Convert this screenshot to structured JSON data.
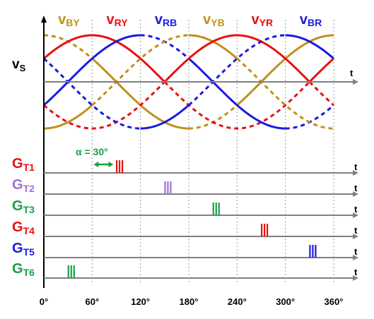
{
  "chart_data": {
    "type": "line",
    "title": "",
    "ylabel": {
      "main": "v",
      "sub": "S"
    },
    "xlabel": "t",
    "x_unit": "degrees",
    "xlim": [
      0,
      360
    ],
    "ylim": [
      -1,
      1
    ],
    "x_ticks": [
      0,
      60,
      120,
      180,
      240,
      300,
      360
    ],
    "x_tick_labels": [
      "0°",
      "60°",
      "120°",
      "180°",
      "240°",
      "300°",
      "360°"
    ],
    "grid": "vertical dotted lines every 60°",
    "series": [
      {
        "name_main": "v",
        "name_sub": "BY",
        "color": "#C09018",
        "expression": "sin(x + 90°)",
        "label_at_deg": 30,
        "segments": [
          {
            "from": 0,
            "to": 60,
            "style": "dashed"
          },
          {
            "from": 60,
            "to": 180,
            "style": "solid"
          },
          {
            "from": 180,
            "to": 240,
            "style": "dashed"
          },
          {
            "from": 240,
            "to": 360,
            "style": "solid"
          }
        ]
      },
      {
        "name_main": "v",
        "name_sub": "RY",
        "color": "#E81010",
        "expression": "sin(x + 30°)",
        "label_at_deg": 90,
        "segments": [
          {
            "from": 0,
            "to": 150,
            "style": "solid"
          },
          {
            "from": 150,
            "to": 330,
            "style": "dashed"
          },
          {
            "from": 330,
            "to": 360,
            "style": "solid"
          }
        ]
      },
      {
        "name_main": "v",
        "name_sub": "RB",
        "color": "#1A1AE0",
        "expression": "sin(x - 30°)",
        "label_at_deg": 150,
        "segments": [
          {
            "from": 0,
            "to": 120,
            "style": "solid"
          },
          {
            "from": 120,
            "to": 180,
            "style": "dashed"
          },
          {
            "from": 180,
            "to": 300,
            "style": "solid"
          },
          {
            "from": 300,
            "to": 360,
            "style": "dashed"
          }
        ]
      },
      {
        "name_main": "v",
        "name_sub": "YB",
        "color": "#C09018",
        "expression": "sin(x - 90°)",
        "label_at_deg": 210,
        "segments": [
          {
            "from": 0,
            "to": 60,
            "style": "solid"
          },
          {
            "from": 60,
            "to": 180,
            "style": "dashed"
          },
          {
            "from": 180,
            "to": 240,
            "style": "solid"
          },
          {
            "from": 240,
            "to": 360,
            "style": "dashed"
          }
        ]
      },
      {
        "name_main": "v",
        "name_sub": "YR",
        "color": "#E81010",
        "expression": "sin(x - 150°)",
        "label_at_deg": 270,
        "segments": [
          {
            "from": 0,
            "to": 150,
            "style": "dashed"
          },
          {
            "from": 150,
            "to": 330,
            "style": "solid"
          },
          {
            "from": 330,
            "to": 360,
            "style": "dashed"
          }
        ]
      },
      {
        "name_main": "v",
        "name_sub": "BR",
        "color": "#1A1AE0",
        "expression": "sin(x + 150°)",
        "label_at_deg": 330,
        "segments": [
          {
            "from": 0,
            "to": 120,
            "style": "dashed"
          },
          {
            "from": 120,
            "to": 180,
            "style": "solid"
          },
          {
            "from": 180,
            "to": 300,
            "style": "dashed"
          },
          {
            "from": 300,
            "to": 360,
            "style": "solid"
          }
        ]
      }
    ],
    "gate_pulses": [
      {
        "name_main": "G",
        "name_sub": "T1",
        "color": "#E81010",
        "fire_deg": 90
      },
      {
        "name_main": "G",
        "name_sub": "T2",
        "color": "#A070D8",
        "fire_deg": 150
      },
      {
        "name_main": "G",
        "name_sub": "T3",
        "color": "#18A048",
        "fire_deg": 210
      },
      {
        "name_main": "G",
        "name_sub": "T4",
        "color": "#E81010",
        "fire_deg": 270
      },
      {
        "name_main": "G",
        "name_sub": "T5",
        "color": "#1A1AE0",
        "fire_deg": 330
      },
      {
        "name_main": "G",
        "name_sub": "T6",
        "color": "#18A048",
        "fire_deg": 30
      }
    ],
    "gate_axis_label": "t",
    "firing_angle": {
      "text": "α = 30°",
      "from_deg": 60,
      "to_deg": 90,
      "color": "#18A048"
    }
  },
  "colors": {
    "axis": "#808080",
    "grid": "#9a9a9a",
    "text": "#000000"
  }
}
